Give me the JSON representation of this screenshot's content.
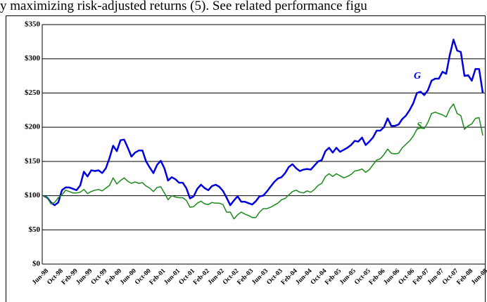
{
  "chart_data": {
    "type": "line",
    "caption": "y maximizing risk-adjusted returns (5). See related performance figu",
    "categories": [
      "Jun-98",
      null,
      null,
      null,
      "Oct-98",
      null,
      null,
      null,
      "Feb-99",
      null,
      null,
      null,
      "Jun-99",
      null,
      null,
      null,
      "Oct-99",
      null,
      null,
      null,
      "Feb-00",
      null,
      null,
      null,
      "Jun-00",
      null,
      null,
      null,
      "Oct-00",
      null,
      null,
      null,
      "Feb-01",
      null,
      null,
      null,
      "Jun-01",
      null,
      null,
      null,
      "Oct-01",
      null,
      null,
      null,
      "Feb-02",
      null,
      null,
      null,
      "Jun-02",
      null,
      null,
      null,
      "Oct-02",
      null,
      null,
      null,
      "Feb-03",
      null,
      null,
      null,
      "Jun-03",
      null,
      null,
      null,
      "Oct-03",
      null,
      null,
      null,
      "Feb-04",
      null,
      null,
      null,
      "Jun-04",
      null,
      null,
      null,
      "Oct-04",
      null,
      null,
      null,
      "Feb-05",
      null,
      null,
      null,
      "Jun-05",
      null,
      null,
      null,
      "Oct-05",
      null,
      null,
      null,
      "Feb-06",
      null,
      null,
      null,
      "Jun-06",
      null,
      null,
      null,
      "Oct-06",
      null,
      null,
      null,
      "Feb-07",
      null,
      null,
      null,
      "Jun-07",
      null,
      null,
      null,
      "Oct-07",
      null,
      null,
      null,
      "Feb-08",
      null,
      null,
      null,
      "Jun-08"
    ],
    "series": [
      {
        "name": "G",
        "color": "#0000dd",
        "values": [
          100,
          97,
          90,
          86,
          90,
          108,
          112,
          112,
          110,
          108,
          115,
          135,
          128,
          137,
          136,
          137,
          133,
          140,
          155,
          173,
          165,
          181,
          182,
          170,
          157,
          163,
          166,
          166,
          150,
          141,
          133,
          145,
          151,
          140,
          122,
          127,
          124,
          119,
          119,
          111,
          96,
          99,
          110,
          116,
          111,
          108,
          114,
          116,
          113,
          107,
          97,
          86,
          93,
          99,
          91,
          91,
          89,
          87,
          92,
          99,
          100,
          106,
          113,
          120,
          125,
          127,
          133,
          142,
          146,
          140,
          136,
          138,
          139,
          138,
          144,
          150,
          152,
          165,
          170,
          163,
          170,
          164,
          167,
          170,
          174,
          180,
          179,
          185,
          174,
          179,
          185,
          195,
          195,
          200,
          213,
          202,
          202,
          204,
          212,
          217,
          225,
          235,
          250,
          252,
          247,
          254,
          268,
          271,
          271,
          281,
          278,
          306,
          328,
          312,
          310,
          275,
          276,
          268,
          285,
          285,
          250
        ]
      },
      {
        "name": "S",
        "color": "#1a8a1a",
        "values": [
          100,
          97,
          88,
          90,
          97,
          101,
          108,
          106,
          104,
          104,
          105,
          109,
          103,
          106,
          108,
          109,
          107,
          111,
          115,
          126,
          117,
          122,
          126,
          121,
          118,
          120,
          118,
          119,
          114,
          111,
          106,
          112,
          113,
          104,
          94,
          100,
          98,
          97,
          97,
          93,
          83,
          84,
          89,
          92,
          88,
          87,
          90,
          89,
          89,
          87,
          76,
          76,
          66,
          72,
          76,
          73,
          71,
          68,
          68,
          76,
          81,
          81,
          83,
          86,
          89,
          94,
          96,
          101,
          106,
          108,
          105,
          104,
          107,
          105,
          109,
          115,
          118,
          128,
          132,
          128,
          132,
          129,
          126,
          128,
          131,
          136,
          137,
          139,
          134,
          138,
          145,
          152,
          154,
          160,
          168,
          162,
          161,
          162,
          170,
          175,
          180,
          187,
          197,
          199,
          198,
          207,
          220,
          222,
          220,
          218,
          215,
          227,
          234,
          220,
          217,
          197,
          202,
          205,
          213,
          214,
          188
        ]
      }
    ],
    "ylim": [
      0,
      350
    ],
    "yticks": [
      {
        "value": 0,
        "label": "$0"
      },
      {
        "value": 50,
        "label": "$50"
      },
      {
        "value": 100,
        "label": "$100"
      },
      {
        "value": 150,
        "label": "$150"
      },
      {
        "value": 200,
        "label": "$200"
      },
      {
        "value": 250,
        "label": "$250"
      },
      {
        "value": 300,
        "label": "$300"
      },
      {
        "value": 350,
        "label": "$350"
      }
    ],
    "grid": true
  }
}
